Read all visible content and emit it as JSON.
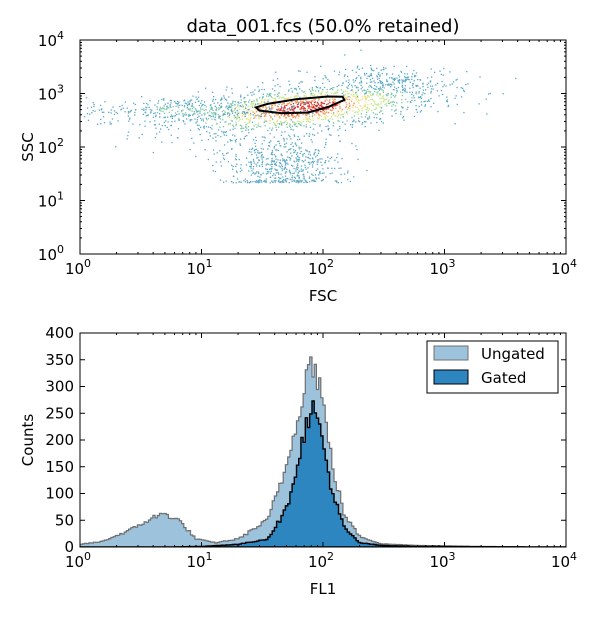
{
  "chart_data": [
    {
      "type": "scatter",
      "title": "data_001.fcs (50.0% retained)",
      "xlabel": "FSC",
      "ylabel": "SSC",
      "xscale": "log",
      "yscale": "log",
      "xlim": [
        1,
        10000
      ],
      "ylim": [
        1,
        10000
      ],
      "x_ticks": [
        {
          "base": "10",
          "exp": "0",
          "value": 1
        },
        {
          "base": "10",
          "exp": "1",
          "value": 10
        },
        {
          "base": "10",
          "exp": "2",
          "value": 100
        },
        {
          "base": "10",
          "exp": "3",
          "value": 1000
        },
        {
          "base": "10",
          "exp": "4",
          "value": 10000
        }
      ],
      "y_ticks": [
        {
          "base": "10",
          "exp": "0",
          "value": 1
        },
        {
          "base": "10",
          "exp": "1",
          "value": 10
        },
        {
          "base": "10",
          "exp": "2",
          "value": 100
        },
        {
          "base": "10",
          "exp": "3",
          "value": 1000
        },
        {
          "base": "10",
          "exp": "4",
          "value": 10000
        }
      ],
      "density_colormap": [
        "#5aa8c6",
        "#7cc8a5",
        "#c4e58a",
        "#f7e08a",
        "#f29a5a",
        "#d73027"
      ],
      "populations": [
        {
          "center": [
            70,
            550
          ],
          "spread_log": [
            0.55,
            0.22
          ],
          "share": 0.55
        },
        {
          "center": [
            8,
            500
          ],
          "spread_log": [
            0.45,
            0.12
          ],
          "share": 0.15
        },
        {
          "center": [
            45,
            50
          ],
          "spread_log": [
            0.25,
            0.3
          ],
          "share": 0.22
        },
        {
          "center": [
            300,
            1800
          ],
          "spread_log": [
            0.3,
            0.15
          ],
          "share": 0.08
        }
      ],
      "gate": {
        "vertices": [
          [
            28,
            550
          ],
          [
            35,
            640
          ],
          [
            60,
            780
          ],
          [
            110,
            880
          ],
          [
            145,
            870
          ],
          [
            150,
            760
          ],
          [
            110,
            560
          ],
          [
            75,
            440
          ],
          [
            45,
            430
          ],
          [
            30,
            480
          ]
        ],
        "color": "#000000"
      }
    },
    {
      "type": "histogram",
      "xlabel": "FL1",
      "ylabel": "Counts",
      "xscale": "log",
      "xlim": [
        1,
        10000
      ],
      "ylim": [
        0,
        400
      ],
      "x_ticks": [
        {
          "base": "10",
          "exp": "0",
          "value": 1
        },
        {
          "base": "10",
          "exp": "1",
          "value": 10
        },
        {
          "base": "10",
          "exp": "2",
          "value": 100
        },
        {
          "base": "10",
          "exp": "3",
          "value": 1000
        },
        {
          "base": "10",
          "exp": "4",
          "value": 10000
        }
      ],
      "y_ticks": [
        "0",
        "50",
        "100",
        "150",
        "200",
        "250",
        "300",
        "350",
        "400"
      ],
      "legend_position": "top-right",
      "series": [
        {
          "name": "Ungated",
          "color": "#9dc3dc",
          "edge": "#6f6f6f",
          "profile": [
            {
              "x": 1,
              "y": 5
            },
            {
              "x": 1.5,
              "y": 10
            },
            {
              "x": 2.5,
              "y": 30
            },
            {
              "x": 4,
              "y": 55
            },
            {
              "x": 5,
              "y": 62
            },
            {
              "x": 6.5,
              "y": 50
            },
            {
              "x": 9,
              "y": 15
            },
            {
              "x": 13,
              "y": 8
            },
            {
              "x": 20,
              "y": 15
            },
            {
              "x": 35,
              "y": 50
            },
            {
              "x": 50,
              "y": 150
            },
            {
              "x": 65,
              "y": 270
            },
            {
              "x": 80,
              "y": 355
            },
            {
              "x": 95,
              "y": 300
            },
            {
              "x": 120,
              "y": 150
            },
            {
              "x": 150,
              "y": 60
            },
            {
              "x": 200,
              "y": 20
            },
            {
              "x": 300,
              "y": 6
            },
            {
              "x": 600,
              "y": 3
            },
            {
              "x": 2000,
              "y": 1
            },
            {
              "x": 10000,
              "y": 0
            }
          ]
        },
        {
          "name": "Gated",
          "color": "#2e86c1",
          "edge": "#000000",
          "profile": [
            {
              "x": 1,
              "y": 0
            },
            {
              "x": 5,
              "y": 0
            },
            {
              "x": 10,
              "y": 1
            },
            {
              "x": 20,
              "y": 5
            },
            {
              "x": 35,
              "y": 15
            },
            {
              "x": 50,
              "y": 70
            },
            {
              "x": 65,
              "y": 180
            },
            {
              "x": 80,
              "y": 265
            },
            {
              "x": 95,
              "y": 220
            },
            {
              "x": 120,
              "y": 100
            },
            {
              "x": 150,
              "y": 35
            },
            {
              "x": 200,
              "y": 8
            },
            {
              "x": 300,
              "y": 3
            },
            {
              "x": 600,
              "y": 1
            },
            {
              "x": 10000,
              "y": 0
            }
          ]
        }
      ]
    }
  ]
}
